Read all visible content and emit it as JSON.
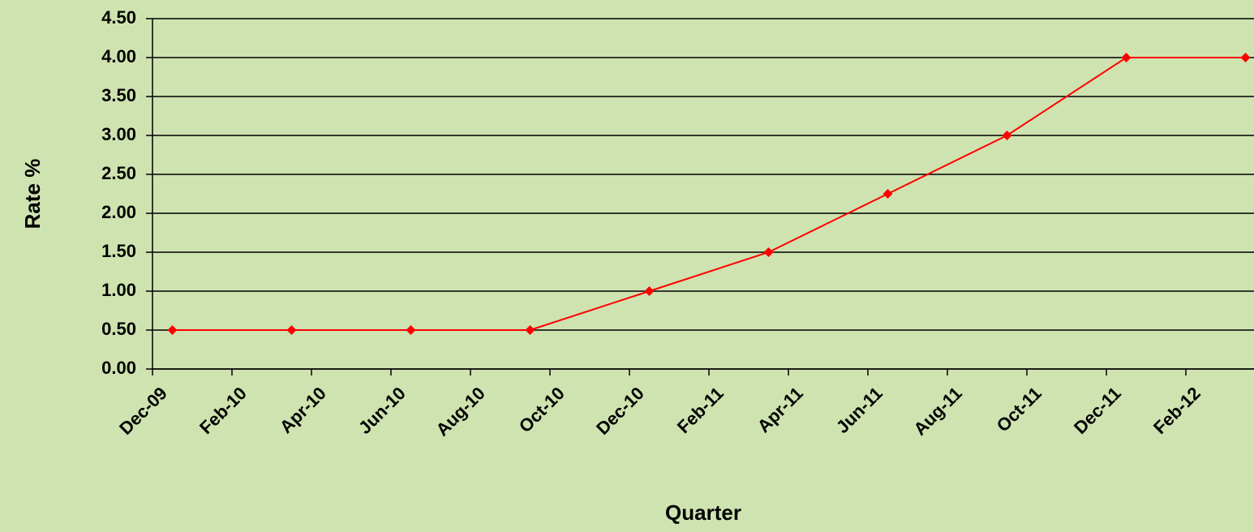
{
  "chart_data": {
    "type": "line",
    "x_label": "Quarter",
    "y_label": "Rate %",
    "x": [
      "2009-12",
      "2010-03",
      "2010-06",
      "2010-09",
      "2010-12",
      "2011-03",
      "2011-06",
      "2011-09",
      "2011-12",
      "2012-03"
    ],
    "series": [
      {
        "name": "Rate",
        "color": "#ff0000",
        "values": [
          0.5,
          0.5,
          0.5,
          0.5,
          1.0,
          1.5,
          2.25,
          3.0,
          4.0,
          4.0
        ]
      }
    ],
    "xlim": [
      "2009-12",
      "2012-03"
    ],
    "xticks": [
      {
        "value": "2009-12",
        "label": "Dec-09"
      },
      {
        "value": "2010-02",
        "label": "Feb-10"
      },
      {
        "value": "2010-04",
        "label": "Apr-10"
      },
      {
        "value": "2010-06",
        "label": "Jun-10"
      },
      {
        "value": "2010-08",
        "label": "Aug-10"
      },
      {
        "value": "2010-10",
        "label": "Oct-10"
      },
      {
        "value": "2010-12",
        "label": "Dec-10"
      },
      {
        "value": "2011-02",
        "label": "Feb-11"
      },
      {
        "value": "2011-04",
        "label": "Apr-11"
      },
      {
        "value": "2011-06",
        "label": "Jun-11"
      },
      {
        "value": "2011-08",
        "label": "Aug-11"
      },
      {
        "value": "2011-10",
        "label": "Oct-11"
      },
      {
        "value": "2011-12",
        "label": "Dec-11"
      },
      {
        "value": "2012-02",
        "label": "Feb-12"
      }
    ],
    "ylim": [
      0,
      4.5
    ],
    "yticks": [
      {
        "value": 0,
        "label": "0.00"
      },
      {
        "value": 0.5,
        "label": "0.50"
      },
      {
        "value": 1,
        "label": "1.00"
      },
      {
        "value": 1.5,
        "label": "1.50"
      },
      {
        "value": 2,
        "label": "2.00"
      },
      {
        "value": 2.5,
        "label": "2.50"
      },
      {
        "value": 3,
        "label": "3.00"
      },
      {
        "value": 3.5,
        "label": "3.50"
      },
      {
        "value": 4,
        "label": "4.00"
      },
      {
        "value": 4.5,
        "label": "4.50"
      }
    ],
    "grid": true
  }
}
